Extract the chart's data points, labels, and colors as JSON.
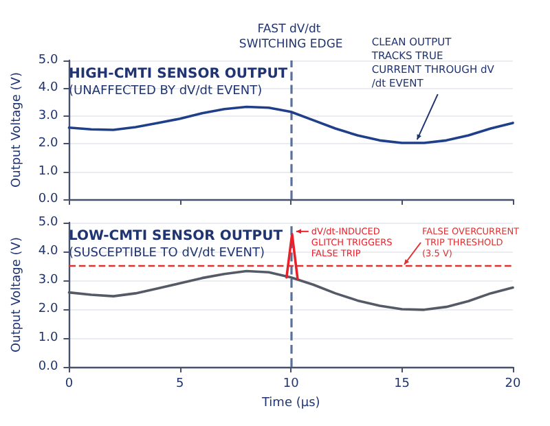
{
  "chart_data": [
    {
      "type": "line",
      "title": "HIGH-CMTI SENSOR OUTPUT",
      "subtitle": "(UNAFFECTED BY dV/dt EVENT)",
      "ylabel": "Output Voltage (V)",
      "x": [
        0,
        1,
        2,
        3,
        4,
        5,
        6,
        7,
        8,
        9,
        10,
        11,
        12,
        13,
        14,
        15,
        16,
        17,
        18,
        19,
        20
      ],
      "series": [
        {
          "color": "#1f3f8a",
          "values": [
            2.58,
            2.52,
            2.5,
            2.6,
            2.75,
            2.9,
            3.1,
            3.25,
            3.33,
            3.3,
            3.15,
            2.85,
            2.55,
            2.3,
            2.12,
            2.03,
            2.03,
            2.12,
            2.3,
            2.55,
            2.75
          ]
        }
      ],
      "xlim": [
        0,
        20
      ],
      "xticks": [
        0,
        5,
        10,
        15,
        20
      ],
      "ylim": [
        0,
        5
      ],
      "yticks": [
        {
          "value": 0,
          "label": "0.0"
        },
        {
          "value": 1,
          "label": "1.0"
        },
        {
          "value": 2,
          "label": "2.0"
        },
        {
          "value": 3,
          "label": "3.0"
        },
        {
          "value": 4,
          "label": "4.0"
        },
        {
          "value": 5,
          "label": "5.0"
        }
      ],
      "tick_labels": "y",
      "grid": "y",
      "marker": "none",
      "line_style": "solid",
      "ref_lines": [
        {
          "axis": "x",
          "value": 10,
          "label": "FAST dV/dt SWITCHING EDGE",
          "color": "#5a6f9a",
          "line_style": "dashed"
        }
      ],
      "annotations": [
        {
          "text": "CLEAN OUTPUT TRACKS TRUE CURRENT THROUGH dV/dt EVENT",
          "x": 15.5,
          "y": 2.05
        }
      ]
    },
    {
      "type": "line",
      "title": "LOW-CMTI SENSOR OUTPUT",
      "subtitle": "(SUSCEPTIBLE TO dV/dt EVENT)",
      "xlabel": "Time (µs)",
      "ylabel": "Output Voltage (V)",
      "x": [
        0,
        1,
        2,
        3,
        4,
        5,
        6,
        7,
        8,
        9,
        10,
        11,
        12,
        13,
        14,
        15,
        16,
        17,
        18,
        19,
        20
      ],
      "series": [
        {
          "color": "#555b66",
          "values": [
            2.58,
            2.5,
            2.45,
            2.55,
            2.72,
            2.9,
            3.08,
            3.22,
            3.32,
            3.28,
            3.1,
            2.85,
            2.55,
            2.3,
            2.12,
            2.0,
            1.98,
            2.08,
            2.28,
            2.55,
            2.75
          ]
        },
        {
          "color": "#e8202a",
          "x": [
            9.8,
            10.05,
            10.3
          ],
          "values": [
            3.1,
            4.6,
            3.05
          ]
        }
      ],
      "xlim": [
        0,
        20
      ],
      "xticks": [
        0,
        5,
        10,
        15,
        20
      ],
      "ylim": [
        0,
        5
      ],
      "yticks": [
        {
          "value": 0,
          "label": "0.0"
        },
        {
          "value": 1,
          "label": "1.0"
        },
        {
          "value": 2,
          "label": "2.0"
        },
        {
          "value": 3,
          "label": "3.0"
        },
        {
          "value": 4,
          "label": "4.0"
        },
        {
          "value": 5,
          "label": "5.0"
        }
      ],
      "grid": "y",
      "marker": "none",
      "line_style": "solid",
      "ref_lines": [
        {
          "axis": "x",
          "value": 10,
          "color": "#5a6f9a",
          "line_style": "dashed"
        },
        {
          "axis": "y",
          "value": 3.5,
          "label": "FALSE OVERCURRENT TRIP THRESHOLD (3.5 V)",
          "color": "#e03030",
          "line_style": "dashed"
        }
      ],
      "annotations": [
        {
          "text": "dV/dt-INDUCED GLITCH TRIGGERS FALSE TRIP",
          "x": 10.05,
          "y": 4.6
        }
      ]
    }
  ]
}
